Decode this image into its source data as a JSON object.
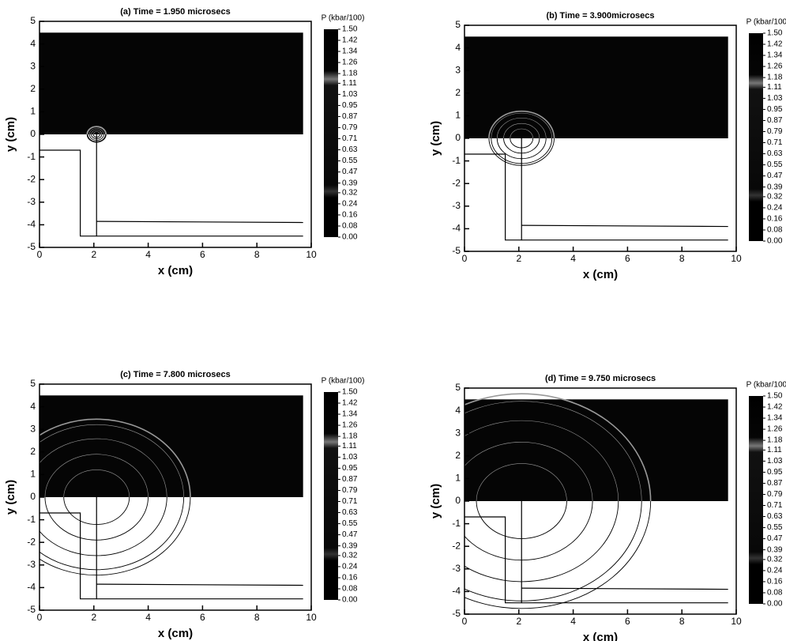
{
  "chart_data": [
    {
      "type": "contour",
      "title": "(a) Time = 1.950 microsecs",
      "xlabel": "x (cm)",
      "ylabel": "y (cm)",
      "xlim": [
        0,
        10
      ],
      "ylim": [
        -5,
        5
      ],
      "xticks": [
        0,
        2,
        4,
        6,
        8,
        10
      ],
      "yticks": [
        -5,
        -4,
        -3,
        -2,
        -1,
        0,
        1,
        2,
        3,
        4,
        5
      ],
      "colorbar": {
        "label": "P (kbar/100)",
        "clim": [
          0,
          1.5
        ],
        "ticks": [
          {
            "value": 1.5,
            "label": "1.50"
          },
          1.42,
          1.34,
          1.26,
          1.18,
          1.11,
          1.03,
          0.95,
          0.87,
          0.79,
          0.71,
          0.63,
          0.55,
          0.47,
          0.39,
          0.32,
          0.24,
          0.16,
          0.08,
          {
            "value": 0,
            "label": "0.00"
          }
        ]
      }
    },
    {
      "type": "contour",
      "title": "(b) Time = 3.900microsecs",
      "xlabel": "x (cm)",
      "ylabel": "y (cm)",
      "xlim": [
        0,
        10
      ],
      "ylim": [
        -5,
        5
      ],
      "xticks": [
        0,
        2,
        4,
        6,
        8,
        10
      ],
      "yticks": [
        -5,
        -4,
        -3,
        -2,
        -1,
        0,
        1,
        2,
        3,
        4,
        5
      ],
      "colorbar": {
        "label": "P (kbar/100)",
        "clim": [
          0,
          1.5
        ],
        "ticks": [
          {
            "value": 1.5,
            "label": "1.50"
          },
          1.42,
          1.34,
          1.26,
          1.18,
          1.11,
          1.03,
          0.95,
          0.87,
          0.79,
          0.71,
          0.63,
          0.55,
          0.47,
          0.39,
          0.32,
          0.24,
          0.16,
          0.08,
          {
            "value": 0,
            "label": "0.00"
          }
        ]
      }
    },
    {
      "type": "contour",
      "title": "(c) Time = 7.800 microsecs",
      "xlabel": "x (cm)",
      "ylabel": "y (cm)",
      "xlim": [
        0,
        10
      ],
      "ylim": [
        -5,
        5
      ],
      "xticks": [
        0,
        2,
        4,
        6,
        8,
        10
      ],
      "yticks": [
        -5,
        -4,
        -3,
        -2,
        -1,
        0,
        1,
        2,
        3,
        4,
        5
      ],
      "colorbar": {
        "label": "P (kbar/100)",
        "clim": [
          0,
          1.5
        ],
        "ticks": [
          {
            "value": 1.5,
            "label": "1.50"
          },
          1.42,
          1.34,
          1.26,
          1.18,
          1.11,
          1.03,
          0.95,
          0.87,
          0.79,
          0.71,
          0.63,
          0.55,
          0.47,
          0.39,
          0.32,
          0.24,
          0.16,
          0.08,
          {
            "value": 0,
            "label": "0.00"
          }
        ]
      }
    },
    {
      "type": "contour",
      "title": "(d) Time = 9.750 microsecs",
      "xlabel": "x (cm)",
      "ylabel": "y (cm)",
      "xlim": [
        0,
        10
      ],
      "ylim": [
        -5,
        5
      ],
      "xticks": [
        0,
        2,
        4,
        6,
        8,
        10
      ],
      "yticks": [
        -5,
        -4,
        -3,
        -2,
        -1,
        0,
        1,
        2,
        3,
        4,
        5
      ],
      "colorbar": {
        "label": "P (kbar/100)",
        "clim": [
          0,
          1.5
        ],
        "ticks": [
          {
            "value": 1.5,
            "label": "1.50"
          },
          1.42,
          1.34,
          1.26,
          1.18,
          1.11,
          1.03,
          0.95,
          0.87,
          0.79,
          0.71,
          0.63,
          0.55,
          0.47,
          0.39,
          0.32,
          0.24,
          0.16,
          0.08,
          {
            "value": 0,
            "label": "0.00"
          }
        ]
      }
    }
  ]
}
